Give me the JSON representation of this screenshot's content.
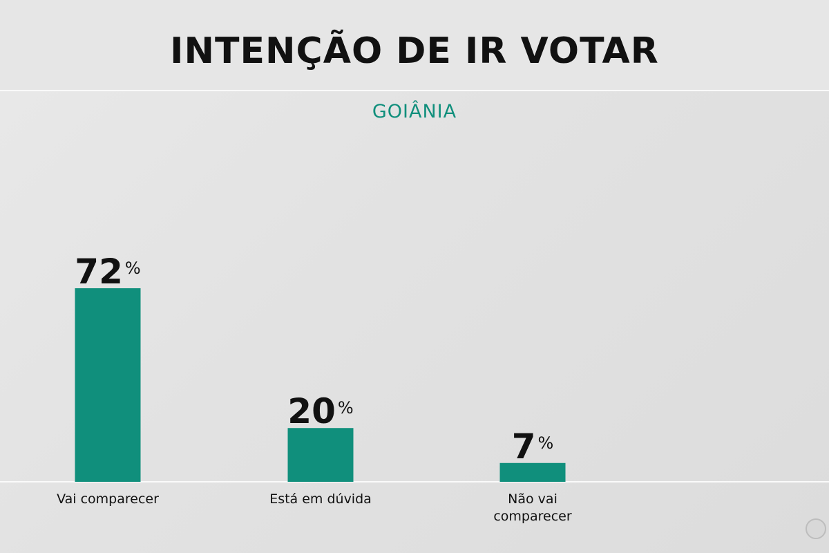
{
  "chart_data": {
    "type": "bar",
    "title": "INTENÇÃO DE IR VOTAR",
    "subtitle": "GOIÂNIA",
    "categories": [
      "Vai comparecer",
      "Está em dúvida",
      "Não vai comparecer"
    ],
    "category_lines": [
      [
        "Vai comparecer"
      ],
      [
        "Está em dúvida"
      ],
      [
        "Não vai",
        "comparecer"
      ]
    ],
    "values": [
      72,
      20,
      7
    ],
    "value_suffix": "%",
    "ylim": [
      0,
      72
    ],
    "grid": false,
    "legend": "none",
    "colors": {
      "bar": "#108f7c",
      "subtitle": "#108f7c",
      "text": "#111111",
      "baseline": "#fafafa"
    }
  }
}
